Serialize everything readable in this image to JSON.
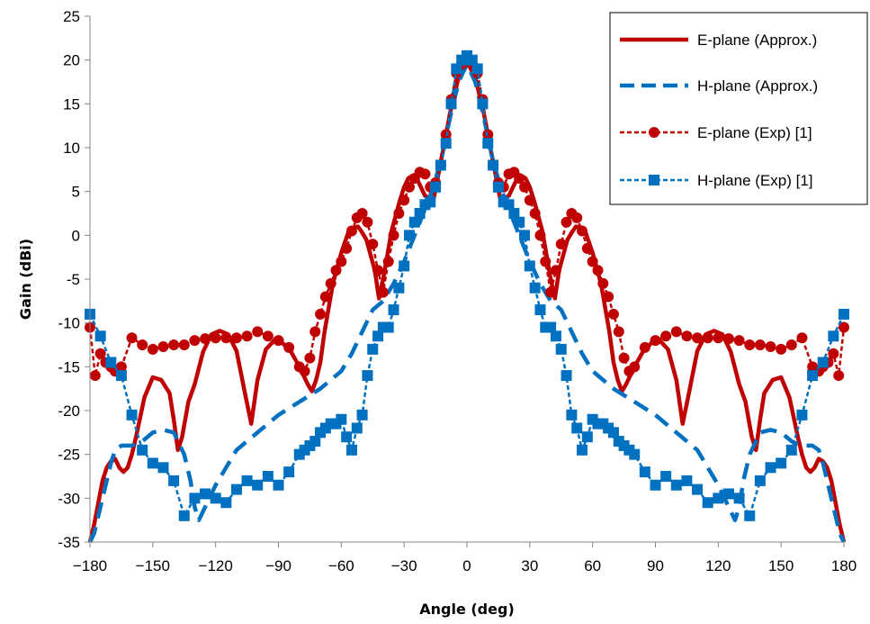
{
  "chart_data": {
    "type": "line",
    "title": "",
    "xlabel": "Angle (deg)",
    "ylabel": "Gain (dBi)",
    "xlim": [
      -180,
      180
    ],
    "ylim": [
      -35,
      25
    ],
    "x_ticks": [
      -180,
      -150,
      -120,
      -90,
      -60,
      -30,
      0,
      30,
      60,
      90,
      120,
      150,
      180
    ],
    "y_ticks": [
      25,
      20,
      15,
      10,
      5,
      0,
      -5,
      -10,
      -15,
      -20,
      -25,
      -30,
      -35
    ],
    "x_tick_labels": [
      "−180",
      "−150",
      "−120",
      "−90",
      "−60",
      "−30",
      "0",
      "30",
      "60",
      "90",
      "120",
      "150",
      "180"
    ],
    "y_tick_labels": [
      "25",
      "20",
      "15",
      "10",
      "5",
      "0",
      "-5",
      "-10",
      "-15",
      "-20",
      "-25",
      "-30",
      "-35"
    ],
    "grid": false,
    "legend_position": "top-right",
    "series": [
      {
        "name": "E-plane (Approx.)",
        "style": "solid",
        "color": "#C00000",
        "marker": "none",
        "x": [
          0,
          4,
          8,
          12,
          16,
          20,
          24,
          26,
          28,
          30,
          32,
          36,
          40,
          42,
          44,
          48,
          50,
          52,
          56,
          60,
          64,
          68,
          70,
          72,
          74,
          76,
          80,
          84,
          88,
          90,
          92,
          96,
          100,
          103,
          106,
          110,
          114,
          118,
          122,
          126,
          130,
          133,
          136,
          138,
          140,
          142,
          146,
          150,
          154,
          158,
          160,
          162,
          164,
          166,
          168,
          170,
          172,
          174,
          176,
          178,
          180
        ],
        "y": [
          19.8,
          18,
          14,
          9,
          4,
          4.5,
          6.5,
          6.8,
          6.5,
          5.5,
          4,
          0.5,
          -5,
          -7.2,
          -4,
          -0.5,
          0.3,
          1,
          0.8,
          -2,
          -5.5,
          -11,
          -14.5,
          -16.5,
          -17.8,
          -17,
          -15,
          -13.3,
          -12.3,
          -12,
          -12,
          -13,
          -16.5,
          -21.5,
          -18,
          -13.2,
          -11.3,
          -10.9,
          -11.3,
          -13.3,
          -17,
          -19,
          -23,
          -24.5,
          -21,
          -18,
          -16.5,
          -16.2,
          -18.5,
          -23,
          -25,
          -26.5,
          -27,
          -26.5,
          -25.5,
          -25.8,
          -26.5,
          -28,
          -30.5,
          -33,
          -35
        ]
      },
      {
        "name": "H-plane (Approx.)",
        "style": "dashed",
        "color": "#0070C0",
        "marker": "none",
        "x": [
          0,
          4,
          8,
          12,
          16,
          20,
          25,
          30,
          35,
          40,
          45,
          50,
          55,
          60,
          70,
          80,
          90,
          100,
          110,
          115,
          120,
          125,
          128,
          130,
          132,
          135,
          140,
          145,
          150,
          155,
          160,
          165,
          168,
          170,
          172,
          174,
          176,
          178,
          180
        ],
        "y": [
          19.5,
          17.5,
          13.5,
          9,
          5.5,
          3,
          0,
          -3,
          -5.5,
          -7.5,
          -8.5,
          -11,
          -13.5,
          -15.5,
          -17.5,
          -19,
          -20.5,
          -22.5,
          -24.5,
          -26.5,
          -28.5,
          -31,
          -32.5,
          -31,
          -28,
          -25,
          -22.5,
          -22.2,
          -22.5,
          -23.5,
          -24,
          -24,
          -24.5,
          -26,
          -28,
          -30,
          -32,
          -34,
          -35
        ]
      },
      {
        "name": "E-plane (Exp) [1]",
        "style": "dotted",
        "color": "#C00000",
        "marker": "circle",
        "x": [
          0,
          2.5,
          5,
          7.5,
          10,
          12.5,
          15,
          17.5,
          20,
          22.5,
          25,
          27.5,
          30,
          32.5,
          35,
          37.5,
          40,
          42.5,
          45,
          47.5,
          50,
          52.5,
          55,
          57.5,
          60,
          62.5,
          65,
          67.5,
          70,
          72.5,
          75,
          77.5,
          80,
          85,
          90,
          95,
          100,
          105,
          110,
          115,
          120,
          125,
          130,
          135,
          140,
          145,
          150,
          155,
          160,
          165,
          168,
          170,
          172.5,
          175,
          177.5,
          180
        ],
        "y": [
          20,
          19.5,
          18.5,
          15.5,
          11.5,
          8,
          6,
          5.5,
          7,
          7.2,
          6.5,
          5.5,
          4,
          2.5,
          0,
          -3,
          -6.5,
          -4,
          -1,
          1.5,
          2.5,
          2,
          0.5,
          -1.5,
          -3,
          -4,
          -5.5,
          -7,
          -9,
          -11,
          -14,
          -15.5,
          -15,
          -12.8,
          -12,
          -11.5,
          -11,
          -11.5,
          -11.7,
          -11.7,
          -11.7,
          -11.8,
          -12,
          -12.5,
          -12.5,
          -12.7,
          -13,
          -12.5,
          -11.7,
          -15,
          -15.5,
          -15,
          -14.5,
          -13.5,
          -16,
          -10.5
        ]
      },
      {
        "name": "H-plane (Exp) [1]",
        "style": "dotted",
        "color": "#0070C0",
        "marker": "square",
        "x": [
          0,
          2.5,
          5,
          7.5,
          10,
          12.5,
          15,
          17.5,
          20,
          22.5,
          25,
          27.5,
          30,
          32.5,
          35,
          37.5,
          40,
          42.5,
          45,
          47.5,
          50,
          52.5,
          55,
          57.5,
          60,
          62.5,
          65,
          67.5,
          70,
          72.5,
          75,
          77.5,
          80,
          85,
          90,
          95,
          100,
          105,
          110,
          115,
          120,
          125,
          130,
          135,
          140,
          145,
          150,
          155,
          160,
          165,
          170,
          175,
          180
        ],
        "y": [
          20.5,
          20,
          19,
          15,
          10.5,
          8,
          5.5,
          3.8,
          3.5,
          2.5,
          1.5,
          0,
          -3.5,
          -6,
          -8.5,
          -10.5,
          -10.5,
          -11.5,
          -13,
          -16,
          -20.5,
          -22,
          -24.5,
          -23,
          -21,
          -21.5,
          -21.5,
          -22,
          -22.5,
          -23.5,
          -24,
          -24.5,
          -25,
          -27,
          -28.5,
          -27.5,
          -28.5,
          -28,
          -29,
          -30.5,
          -30,
          -29.5,
          -30,
          -32,
          -28,
          -26.5,
          -26,
          -24.5,
          -20.5,
          -16,
          -14.5,
          -11.5,
          -9
        ]
      }
    ]
  }
}
